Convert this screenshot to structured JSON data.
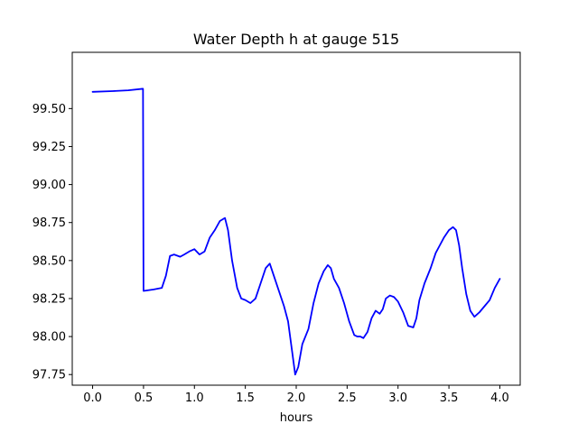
{
  "chart_data": {
    "type": "line",
    "title": "Water Depth h at gauge 515",
    "xlabel": "hours",
    "ylabel": "",
    "xlim": [
      -0.2,
      4.2
    ],
    "ylim": [
      97.68,
      99.87
    ],
    "x_ticks": [
      0.0,
      0.5,
      1.0,
      1.5,
      2.0,
      2.5,
      3.0,
      3.5,
      4.0
    ],
    "x_tick_labels": [
      "0.0",
      "0.5",
      "1.0",
      "1.5",
      "2.0",
      "2.5",
      "3.0",
      "3.5",
      "4.0"
    ],
    "y_ticks": [
      97.75,
      98.0,
      98.25,
      98.5,
      98.75,
      99.0,
      99.25,
      99.5
    ],
    "y_tick_labels": [
      "97.75",
      "98.00",
      "98.25",
      "98.50",
      "98.75",
      "99.00",
      "99.25",
      "99.50"
    ],
    "grid": false,
    "legend": "none",
    "series": [
      {
        "color": "#0000ff",
        "x": [
          0.0,
          0.2,
          0.35,
          0.49,
          0.495,
          0.5,
          0.6,
          0.68,
          0.72,
          0.76,
          0.8,
          0.86,
          0.9,
          0.95,
          1.0,
          1.05,
          1.1,
          1.15,
          1.2,
          1.25,
          1.3,
          1.33,
          1.37,
          1.42,
          1.46,
          1.5,
          1.55,
          1.6,
          1.65,
          1.7,
          1.74,
          1.78,
          1.83,
          1.88,
          1.92,
          1.96,
          1.99,
          2.02,
          2.06,
          2.12,
          2.17,
          2.22,
          2.27,
          2.31,
          2.34,
          2.37,
          2.42,
          2.47,
          2.52,
          2.57,
          2.6,
          2.63,
          2.66,
          2.7,
          2.74,
          2.78,
          2.82,
          2.85,
          2.88,
          2.92,
          2.96,
          3.0,
          3.05,
          3.1,
          3.15,
          3.18,
          3.21,
          3.26,
          3.32,
          3.37,
          3.41,
          3.45,
          3.5,
          3.54,
          3.57,
          3.6,
          3.63,
          3.67,
          3.71,
          3.75,
          3.8,
          3.85,
          3.9,
          3.95,
          4.0
        ],
        "y": [
          99.61,
          99.615,
          99.62,
          99.63,
          99.63,
          98.3,
          98.31,
          98.32,
          98.4,
          98.53,
          98.54,
          98.525,
          98.54,
          98.56,
          98.575,
          98.54,
          98.56,
          98.65,
          98.7,
          98.76,
          98.78,
          98.7,
          98.5,
          98.32,
          98.25,
          98.24,
          98.22,
          98.25,
          98.35,
          98.45,
          98.48,
          98.4,
          98.3,
          98.2,
          98.1,
          97.9,
          97.75,
          97.8,
          97.95,
          98.05,
          98.22,
          98.35,
          98.43,
          98.47,
          98.45,
          98.38,
          98.32,
          98.22,
          98.1,
          98.01,
          98.0,
          98.0,
          97.99,
          98.03,
          98.12,
          98.17,
          98.15,
          98.18,
          98.25,
          98.27,
          98.26,
          98.23,
          98.16,
          98.07,
          98.06,
          98.12,
          98.24,
          98.35,
          98.45,
          98.55,
          98.6,
          98.65,
          98.7,
          98.72,
          98.7,
          98.6,
          98.45,
          98.28,
          98.17,
          98.13,
          98.16,
          98.2,
          98.24,
          98.32,
          98.38
        ]
      }
    ]
  }
}
